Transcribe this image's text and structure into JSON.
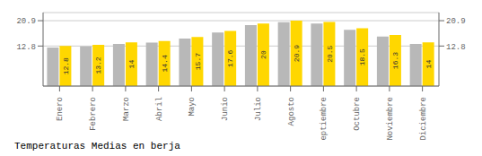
{
  "chart_data": {
    "type": "bar",
    "title": "Temperaturas Medias en berja",
    "categories": [
      "Enero",
      "Febrero",
      "Marzo",
      "Abril",
      "Mayo",
      "Junio",
      "Julio",
      "Agosto",
      "Septiembre",
      "Octubre",
      "Noviembre",
      "Diciembre"
    ],
    "series": [
      {
        "color": "#B8B8B8",
        "values": [
          12.3,
          12.7,
          13.5,
          13.9,
          15.2,
          17.1,
          19.5,
          20.4,
          20.0,
          18.0,
          15.8,
          13.5
        ]
      },
      {
        "color": "#FFD700",
        "values": [
          12.8,
          13.2,
          14.0,
          14.4,
          15.7,
          17.6,
          20.0,
          20.9,
          20.5,
          18.5,
          16.3,
          14.0
        ],
        "data_labels": true
      }
    ],
    "ylim": [
      0,
      23.5
    ],
    "yticks": [
      12.8,
      20.9
    ],
    "grid": true
  }
}
